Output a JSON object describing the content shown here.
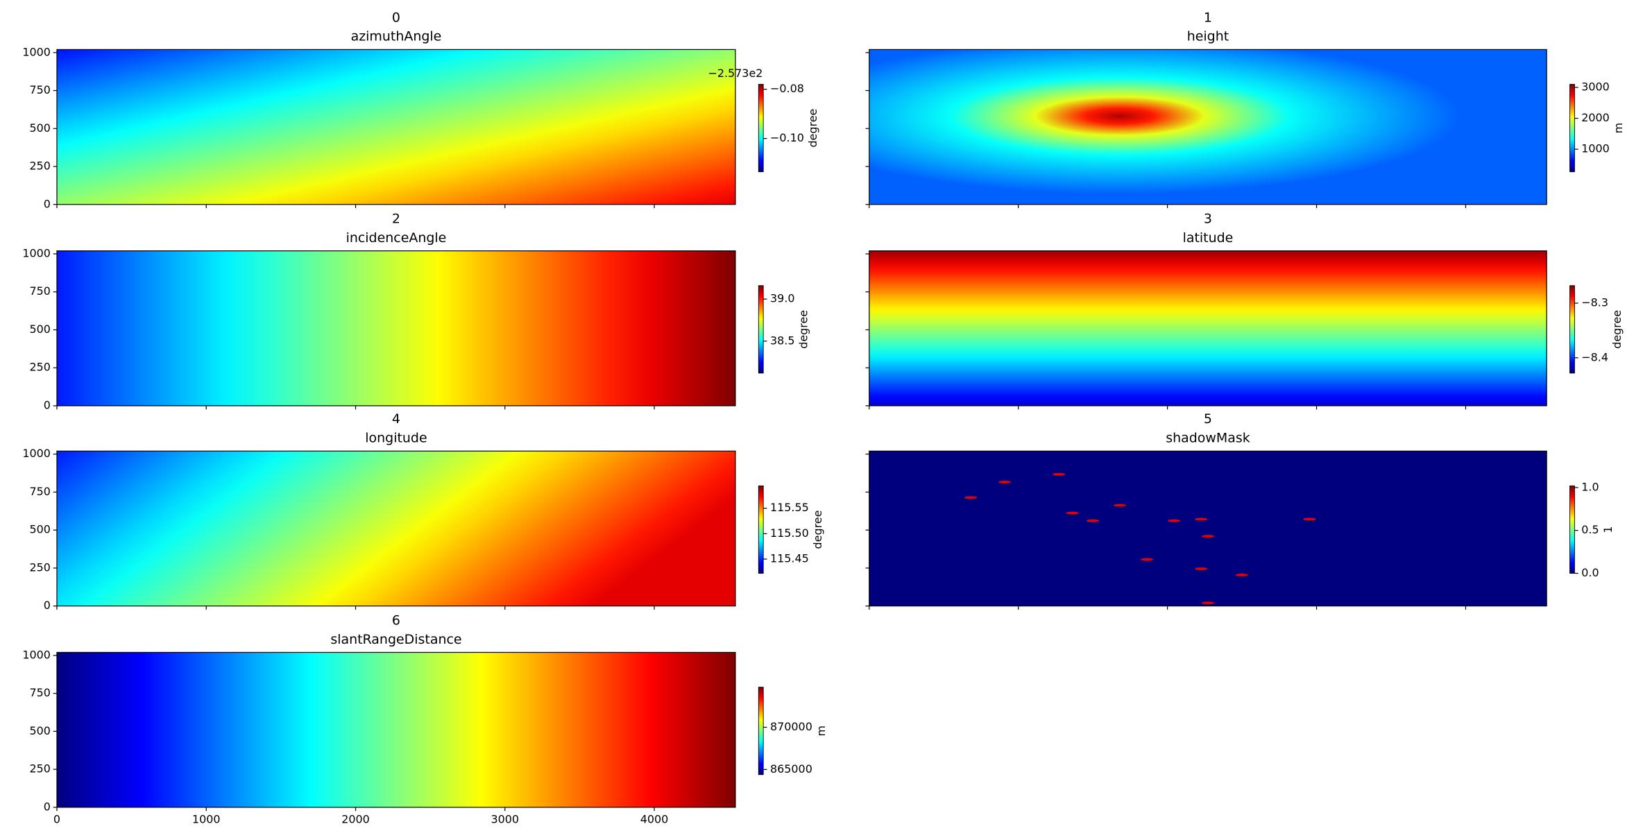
{
  "chart_data": [
    {
      "type": "heatmap",
      "index": "0",
      "title": "azimuthAngle",
      "colormap": "jet",
      "xlim": [
        0,
        4543
      ],
      "ylim": [
        0,
        1020
      ],
      "xticks": [
        0,
        1000,
        2000,
        3000,
        4000
      ],
      "yticks": [
        0,
        250,
        500,
        750,
        1000
      ],
      "xticklabels": false,
      "yticklabels": true,
      "colorbar_label": "degree",
      "clim": [
        -0.1135,
        -0.078
      ],
      "cticks": [
        {
          "value": -0.1,
          "label": "−0.10"
        },
        {
          "value": -0.08,
          "label": "−0.08"
        }
      ],
      "colorbar_offset": "−2.573e2"
    },
    {
      "type": "heatmap",
      "index": "1",
      "title": "height",
      "colormap": "jet",
      "xlim": [
        0,
        4543
      ],
      "ylim": [
        0,
        1020
      ],
      "xticks": [
        0,
        1000,
        2000,
        3000,
        4000
      ],
      "yticks": [
        0,
        250,
        500,
        750,
        1000
      ],
      "xticklabels": false,
      "yticklabels": false,
      "colorbar_label": "m",
      "clim": [
        270,
        3100
      ],
      "cticks": [
        1000,
        2000,
        3000
      ]
    },
    {
      "type": "heatmap",
      "index": "2",
      "title": "incidenceAngle",
      "colormap": "jet",
      "xlim": [
        0,
        4543
      ],
      "ylim": [
        0,
        1020
      ],
      "xticks": [
        0,
        1000,
        2000,
        3000,
        4000
      ],
      "yticks": [
        0,
        250,
        500,
        750,
        1000
      ],
      "xticklabels": false,
      "yticklabels": true,
      "colorbar_label": "degree",
      "clim": [
        38.12,
        39.16
      ],
      "cticks": [
        38.5,
        {
          "value": 39,
          "label": "39.0"
        }
      ]
    },
    {
      "type": "heatmap",
      "index": "3",
      "title": "latitude",
      "colormap": "jet",
      "xlim": [
        0,
        4543
      ],
      "ylim": [
        0,
        1020
      ],
      "xticks": [
        0,
        1000,
        2000,
        3000,
        4000
      ],
      "yticks": [
        0,
        250,
        500,
        750,
        1000
      ],
      "xticklabels": false,
      "yticklabels": false,
      "colorbar_label": "degree",
      "clim": [
        -8.428,
        -8.268
      ],
      "cticks": [
        {
          "value": -8.4,
          "label": "−8.4"
        },
        {
          "value": -8.3,
          "label": "−8.3"
        }
      ]
    },
    {
      "type": "heatmap",
      "index": "4",
      "title": "longitude",
      "colormap": "jet",
      "xlim": [
        0,
        4543
      ],
      "ylim": [
        0,
        1020
      ],
      "xticks": [
        0,
        1000,
        2000,
        3000,
        4000
      ],
      "yticks": [
        0,
        250,
        500,
        750,
        1000
      ],
      "xticklabels": false,
      "yticklabels": true,
      "colorbar_label": "degree",
      "clim": [
        115.422,
        115.594
      ],
      "cticks": [
        115.45,
        {
          "value": 115.5,
          "label": "115.50"
        },
        115.55
      ]
    },
    {
      "type": "heatmap",
      "index": "5",
      "title": "shadowMask",
      "colormap": "jet",
      "xlim": [
        0,
        4543
      ],
      "ylim": [
        0,
        1020
      ],
      "xticks": [
        0,
        1000,
        2000,
        3000,
        4000
      ],
      "yticks": [
        0,
        250,
        500,
        750,
        1000
      ],
      "xticklabels": false,
      "yticklabels": false,
      "colorbar_label": "1",
      "clim": [
        0,
        1.02
      ],
      "cticks": [
        {
          "value": 0,
          "label": "0.0"
        },
        0.5,
        {
          "value": 1,
          "label": "1.0"
        }
      ]
    },
    {
      "type": "heatmap",
      "index": "6",
      "title": "slantRangeDistance",
      "colormap": "jet",
      "xlim": [
        0,
        4543
      ],
      "ylim": [
        0,
        1020
      ],
      "xticks": [
        0,
        1000,
        2000,
        3000,
        4000
      ],
      "yticks": [
        0,
        250,
        500,
        750,
        1000
      ],
      "xticklabels": true,
      "yticklabels": true,
      "colorbar_label": "m",
      "clim": [
        864390,
        874756
      ],
      "cticks": [
        865000,
        870000
      ]
    }
  ]
}
